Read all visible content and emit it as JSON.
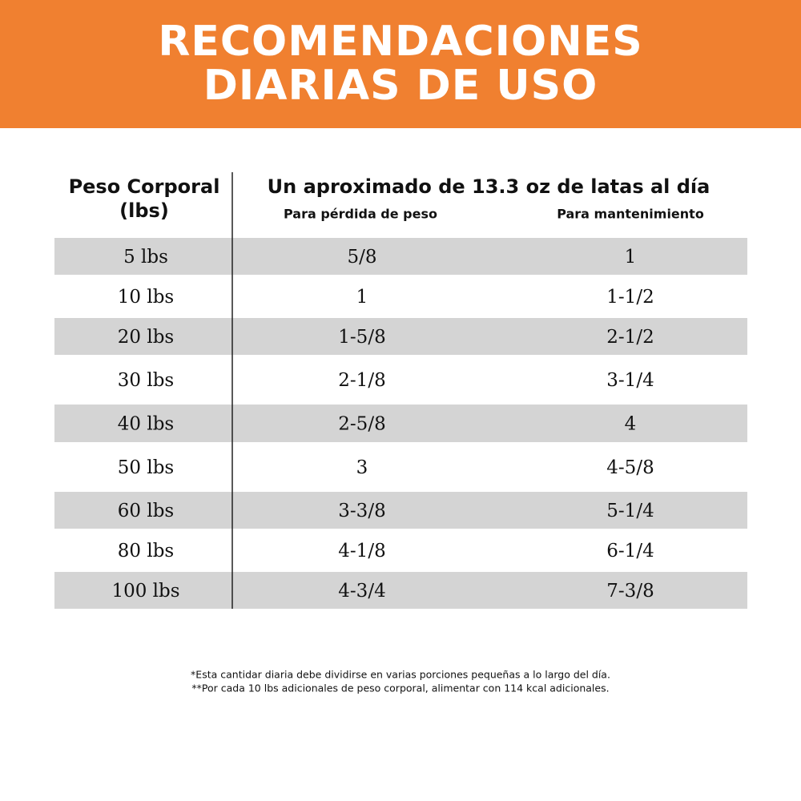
{
  "header": {
    "title": [
      "RECOMENDACIONES",
      "DIARIAS DE USO"
    ]
  },
  "table": {
    "weight_header": [
      "Peso Corporal",
      "(lbs)"
    ],
    "group_header": "Un aproximado de 13.3 oz de latas al día",
    "subheaders": [
      "Para pérdida de peso",
      "Para mantenimiento"
    ],
    "rows": [
      [
        "5 lbs",
        "5/8",
        "1"
      ],
      [
        "10 lbs",
        "1",
        "1-1/2"
      ],
      [
        "20 lbs",
        "1-5/8",
        "2-1/2"
      ],
      [
        "30 lbs",
        "2-1/8",
        "3-1/4"
      ],
      [
        "40 lbs",
        "2-5/8",
        "4"
      ],
      [
        "50 lbs",
        "3",
        "4-5/8"
      ],
      [
        "60 lbs",
        "3-3/8",
        "5-1/4"
      ],
      [
        "80 lbs",
        "4-1/8",
        "6-1/4"
      ],
      [
        "100 lbs",
        "4-3/4",
        "7-3/8"
      ]
    ]
  },
  "footnotes": [
    "*Esta cantidar diaria debe dividirse en varias porciones pequeñas a lo largo del día.",
    "**Por cada 10 lbs adicionales de peso corporal, alimentar con 114 kcal adicionales."
  ]
}
